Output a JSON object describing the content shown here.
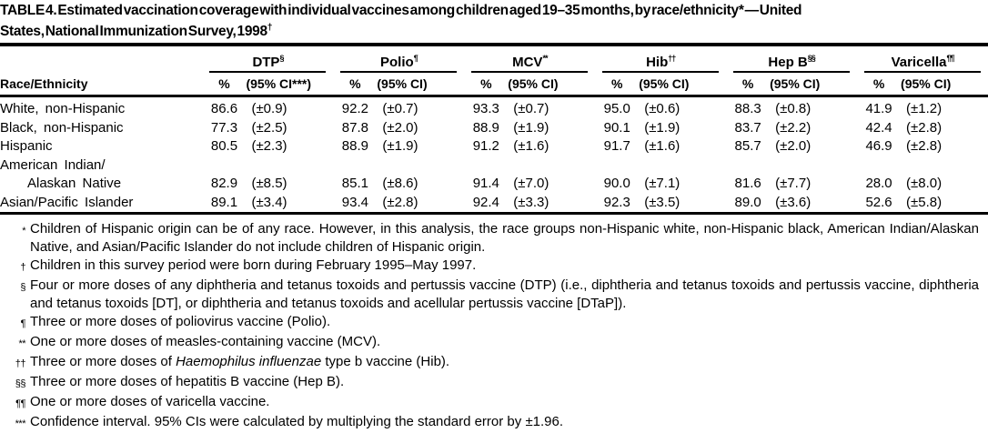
{
  "title": {
    "line1": "TABLE 4. Estimated vaccination coverage with individual vaccines among children aged 19–35 months, by race/ethnicity* — United",
    "line2": "States, National Immunization Survey, 1998",
    "line2_sup": "†"
  },
  "table": {
    "row_header": "Race/Ethnicity",
    "groups": [
      {
        "name": "DTP",
        "sup": "§",
        "pct_label": "%",
        "ci_label": "(95% CI***)"
      },
      {
        "name": "Polio",
        "sup": "¶",
        "pct_label": "%",
        "ci_label": "(95% CI)"
      },
      {
        "name": "MCV",
        "sup": "**",
        "pct_label": "%",
        "ci_label": "(95% CI)"
      },
      {
        "name": "Hib",
        "sup": "††",
        "pct_label": "%",
        "ci_label": "(95% CI)"
      },
      {
        "name": "Hep B",
        "sup": "§§",
        "pct_label": "%",
        "ci_label": "(95% CI)"
      },
      {
        "name": "Varicella",
        "sup": "¶¶",
        "pct_label": "%",
        "ci_label": "(95% CI)"
      }
    ],
    "rows": [
      {
        "label": "White, non-Hispanic",
        "values": [
          "86.6",
          "(±0.9)",
          "92.2",
          "(±0.7)",
          "93.3",
          "(±0.7)",
          "95.0",
          "(±0.6)",
          "88.3",
          "(±0.8)",
          "41.9",
          "(±1.2)"
        ]
      },
      {
        "label": "Black, non-Hispanic",
        "values": [
          "77.3",
          "(±2.5)",
          "87.8",
          "(±2.0)",
          "88.9",
          "(±1.9)",
          "90.1",
          "(±1.9)",
          "83.7",
          "(±2.2)",
          "42.4",
          "(±2.8)"
        ]
      },
      {
        "label": "Hispanic",
        "values": [
          "80.5",
          "(±2.3)",
          "88.9",
          "(±1.9)",
          "91.2",
          "(±1.6)",
          "91.7",
          "(±1.6)",
          "85.7",
          "(±2.0)",
          "46.9",
          "(±2.8)"
        ]
      },
      {
        "label": "American Indian/",
        "values": [
          "",
          "",
          "",
          "",
          "",
          "",
          "",
          "",
          "",
          "",
          "",
          ""
        ]
      },
      {
        "label": "Alaskan Native",
        "values": [
          "82.9",
          "(±8.5)",
          "85.1",
          "(±8.6)",
          "91.4",
          "(±7.0)",
          "90.0",
          "(±7.1)",
          "81.6",
          "(±7.7)",
          "28.0",
          "(±8.0)"
        ]
      },
      {
        "label": "Asian/Pacific Islander",
        "values": [
          "89.1",
          "(±3.4)",
          "93.4",
          "(±2.8)",
          "92.4",
          "(±3.3)",
          "92.3",
          "(±3.5)",
          "89.0",
          "(±3.6)",
          "52.6",
          "(±5.8)"
        ]
      }
    ]
  },
  "footnotes": [
    {
      "marker": "*",
      "text": "Children of Hispanic origin can be of any race.  However, in this analysis, the race groups non-Hispanic white, non-Hispanic black, American Indian/Alaskan Native, and Asian/Pacific Islander do not include children of Hispanic origin."
    },
    {
      "marker": "†",
      "text": "Children in this survey period were born during February 1995–May 1997."
    },
    {
      "marker": "§",
      "text": "Four or more doses of any diphtheria and tetanus toxoids and pertussis vaccine (DTP) (i.e., diphtheria and tetanus toxoids and pertussis vaccine, diphtheria and tetanus toxoids [DT], or diphtheria and tetanus toxoids and acellular pertussis vaccine [DTaP])."
    },
    {
      "marker": "¶",
      "text": "Three or more doses of poliovirus vaccine (Polio)."
    },
    {
      "marker": "**",
      "text": "One or more doses of measles-containing vaccine (MCV)."
    },
    {
      "marker": "††",
      "pre": "Three or more doses of ",
      "italic": "Haemophilus influenzae",
      "post": " type b vaccine (Hib)."
    },
    {
      "marker": "§§",
      "text": "Three or more doses of hepatitis B vaccine (Hep B)."
    },
    {
      "marker": "¶¶",
      "text": "One or more doses of varicella vaccine."
    },
    {
      "marker": "***",
      "text": "Confidence interval. 95% CIs were calculated by multiplying the standard error by ±1.96."
    }
  ],
  "colors": {
    "text": "#000000",
    "background": "#ffffff",
    "rule": "#000000"
  }
}
